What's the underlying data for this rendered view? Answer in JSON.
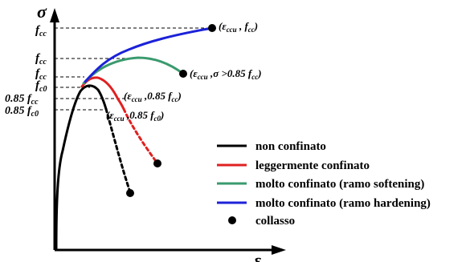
{
  "axes": {
    "y_symbol": "σ",
    "x_symbol": "ε"
  },
  "y_labels": {
    "fcc_top": {
      "base": "f",
      "sub": "cc"
    },
    "fcc_mid": {
      "base": "f",
      "sub": "cc"
    },
    "fcc_low": {
      "base": "f",
      "sub": "cc"
    },
    "fc0": {
      "base": "f",
      "sub": "c0"
    },
    "frac_fcc": {
      "pre": "0.85 ",
      "base": "f",
      "sub": "cc"
    },
    "frac_fc0": {
      "pre": "0.85 ",
      "base": "f",
      "sub": "c0"
    }
  },
  "annotations": {
    "hardening": {
      "open": "(",
      "eps": "ε",
      "eps_sub": "ccu",
      "sep": " , ",
      "f": "f",
      "f_sub": "cc",
      "close": ")"
    },
    "softening": {
      "open": "(",
      "eps": "ε",
      "eps_sub": "ccu",
      "mid": " ,σ >0.85 ",
      "f": "f",
      "f_sub": "cc",
      "close": ")"
    },
    "light": {
      "open": "(",
      "eps": "ε",
      "eps_sub": "ccu",
      "mid": " ,0.85 ",
      "f": "f",
      "f_sub": "cc",
      "close": ")"
    },
    "unconfined": {
      "open": "(",
      "eps": "ε",
      "eps_sub": "ccu",
      "mid": " ,0.85 ",
      "f": "f",
      "f_sub": "c0",
      "close": ")"
    }
  },
  "legend": {
    "items": [
      {
        "label": "non confinato",
        "color": "#000000",
        "marker": "line"
      },
      {
        "label": "leggermente confinato",
        "color": "#e02020",
        "marker": "line"
      },
      {
        "label": "molto confinato (ramo softening)",
        "color": "#3a9a6e",
        "marker": "line"
      },
      {
        "label": "molto confinato (ramo hardening)",
        "color": "#1c22d8",
        "marker": "line"
      },
      {
        "label": "collasso",
        "color": "#000000",
        "marker": "dot"
      }
    ]
  }
}
